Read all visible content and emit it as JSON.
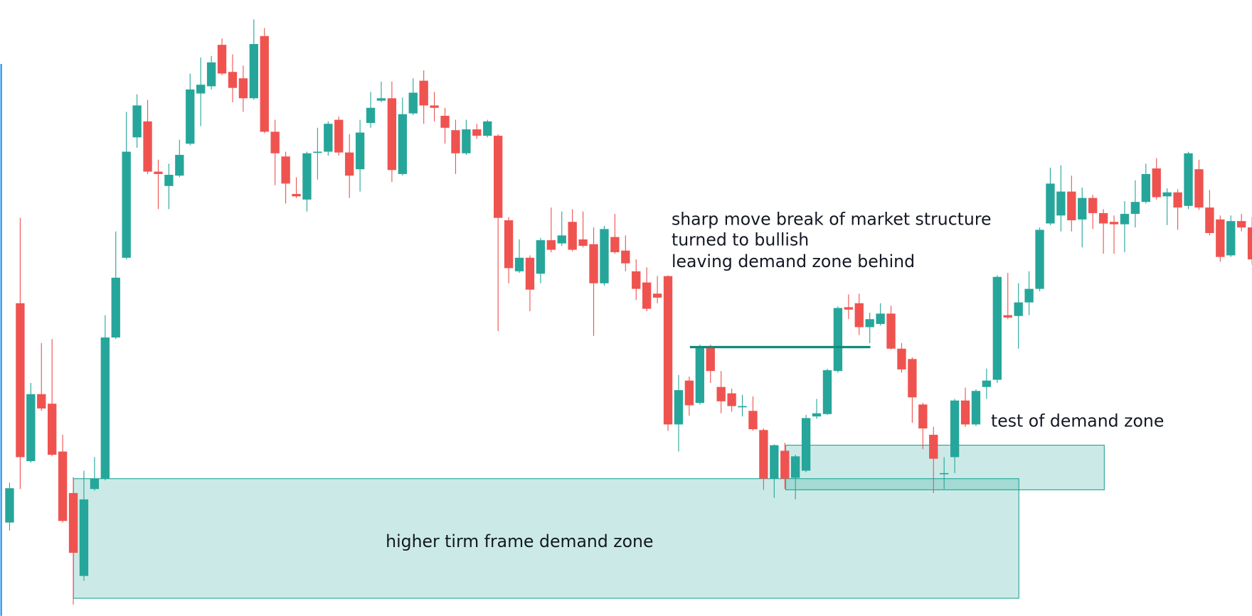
{
  "chart_data": {
    "type": "candlestick",
    "up_color": "#26a69a",
    "down_color": "#ef5350",
    "ylim": [
      0,
      772
    ],
    "open": [
      117,
      392,
      194,
      278,
      266,
      206,
      154,
      50,
      159,
      172,
      349,
      449,
      600,
      620,
      557,
      539,
      552,
      592,
      655,
      664,
      716,
      682,
      674,
      649,
      727,
      607,
      576,
      529,
      522,
      581,
      582,
      622,
      581,
      560,
      618,
      646,
      649,
      554,
      630,
      671,
      640,
      627,
      609,
      580,
      610,
      602,
      602,
      496,
      432,
      449,
      429,
      471,
      467,
      494,
      472,
      466,
      417,
      475,
      458,
      432,
      418,
      404,
      426,
      240,
      295,
      267,
      338,
      287,
      279,
      262,
      257,
      233,
      172,
      207,
      173,
      182,
      250,
      253,
      307,
      387,
      392,
      362,
      366,
      379,
      335,
      322,
      265,
      227,
      178,
      199,
      270,
      240,
      287,
      296,
      377,
      376,
      393,
      410,
      492,
      502,
      532,
      497,
      524,
      505,
      494,
      491,
      504,
      519,
      561,
      526,
      531,
      514,
      560,
      512,
      497,
      452,
      495,
      487
    ],
    "high": [
      167,
      499,
      292,
      342,
      347,
      227,
      174,
      182,
      199,
      377,
      482,
      632,
      654,
      647,
      572,
      567,
      597,
      680,
      700,
      702,
      724,
      704,
      690,
      748,
      737,
      622,
      582,
      550,
      582,
      612,
      620,
      626,
      604,
      622,
      657,
      670,
      670,
      650,
      674,
      684,
      657,
      637,
      622,
      622,
      617,
      622,
      604,
      500,
      472,
      452,
      474,
      512,
      507,
      510,
      507,
      487,
      489,
      504,
      477,
      447,
      437,
      426,
      427,
      302,
      300,
      340,
      340,
      307,
      285,
      277,
      275,
      235,
      215,
      217,
      202,
      252,
      272,
      310,
      388,
      403,
      404,
      380,
      392,
      389,
      342,
      324,
      267,
      237,
      199,
      272,
      286,
      284,
      310,
      427,
      430,
      417,
      432,
      487,
      562,
      565,
      552,
      537,
      528,
      510,
      502,
      520,
      546,
      567,
      574,
      536,
      535,
      582,
      572,
      534,
      502,
      502,
      504,
      500
    ],
    "low": [
      107,
      159,
      192,
      257,
      200,
      117,
      14,
      44,
      157,
      170,
      347,
      447,
      587,
      554,
      510,
      510,
      550,
      590,
      614,
      660,
      678,
      644,
      632,
      647,
      605,
      540,
      517,
      524,
      507,
      547,
      577,
      577,
      524,
      532,
      612,
      644,
      544,
      552,
      628,
      617,
      620,
      592,
      554,
      578,
      598,
      600,
      357,
      417,
      430,
      382,
      417,
      456,
      464,
      457,
      462,
      351,
      414,
      454,
      432,
      396,
      382,
      392,
      232,
      206,
      251,
      265,
      292,
      254,
      256,
      250,
      232,
      158,
      148,
      159,
      146,
      180,
      247,
      252,
      305,
      372,
      352,
      342,
      364,
      334,
      305,
      242,
      209,
      154,
      159,
      179,
      237,
      238,
      272,
      292,
      372,
      335,
      377,
      407,
      490,
      482,
      482,
      462,
      485,
      454,
      454,
      456,
      487,
      517,
      522,
      490,
      484,
      510,
      509,
      477,
      444,
      450,
      482,
      440
    ],
    "close": [
      160,
      199,
      278,
      260,
      202,
      119,
      79,
      146,
      172,
      349,
      424,
      582,
      640,
      557,
      554,
      553,
      578,
      660,
      666,
      694,
      680,
      662,
      649,
      717,
      607,
      580,
      542,
      526,
      580,
      582,
      617,
      581,
      552,
      606,
      637,
      649,
      559,
      629,
      656,
      640,
      637,
      612,
      580,
      610,
      602,
      620,
      499,
      436,
      449,
      409,
      471,
      459,
      477,
      459,
      464,
      417,
      485,
      456,
      442,
      410,
      385,
      399,
      240,
      283,
      264,
      338,
      307,
      269,
      263,
      263,
      234,
      172,
      214,
      172,
      200,
      248,
      254,
      308,
      386,
      384,
      362,
      372,
      379,
      335,
      309,
      274,
      235,
      197,
      179,
      270,
      240,
      282,
      295,
      425,
      374,
      393,
      410,
      484,
      542,
      532,
      496,
      524,
      505,
      492,
      491,
      504,
      519,
      554,
      525,
      531,
      512,
      580,
      512,
      480,
      450,
      495,
      487,
      447
    ],
    "zones": [
      {
        "top": 172,
        "bottom": 22
      },
      {
        "top": 214,
        "bottom": 158
      }
    ],
    "level": 337,
    "annotations": [
      "sharp move break of market structure",
      "turned to bullish",
      "leaving demand zone behind",
      "test of demand zone",
      "higher tirm frame demand zone"
    ]
  }
}
